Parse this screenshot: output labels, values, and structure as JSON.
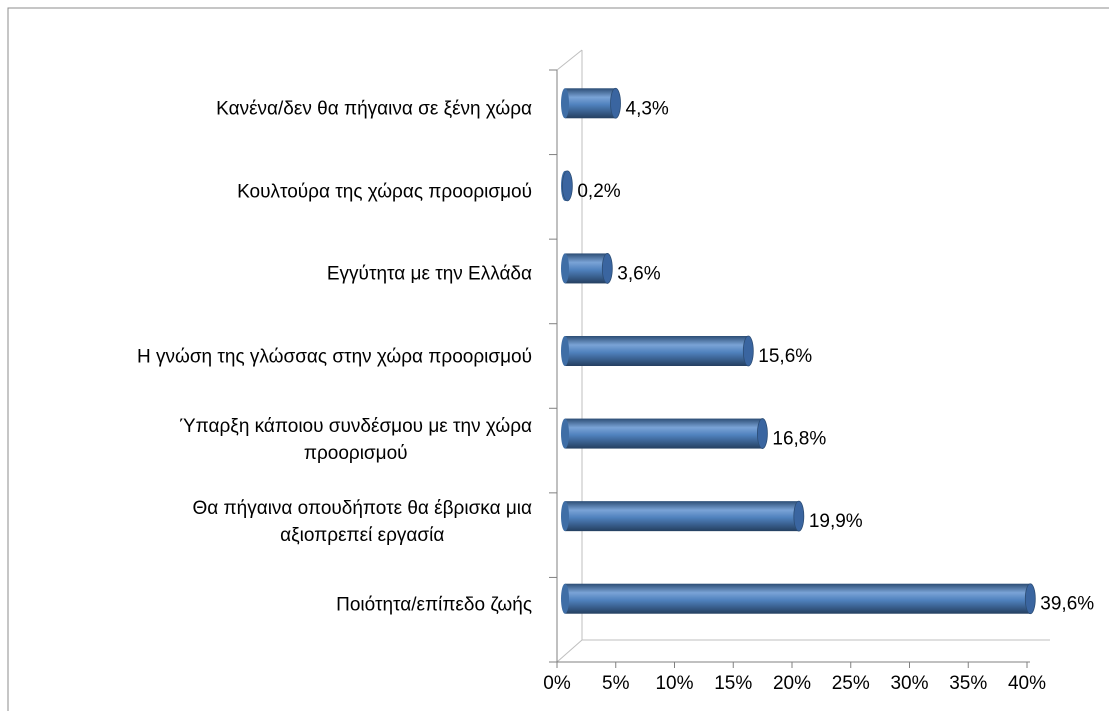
{
  "chart_data": {
    "type": "bar",
    "orientation": "horizontal",
    "categories": [
      "Κανένα/δεν θα πήγαινα σε ξένη χώρα",
      "Κουλτούρα της χώρας προορισμού",
      "Εγγύτητα με την Ελλάδα",
      "Η γνώση της γλώσσας στην χώρα προορισμού",
      "Ύπαρξη κάποιου συνδέσμου με την χώρα\nπροορισμού",
      "Θα πήγαινα οπουδήποτε θα έβρισκα μια\nαξιοπρεπεί εργασία",
      "Ποιότητα/επίπεδο ζωής"
    ],
    "values": [
      4.3,
      0.2,
      3.6,
      15.6,
      16.8,
      19.9,
      39.6
    ],
    "value_labels": [
      "4,3%",
      "0,2%",
      "3,6%",
      "15,6%",
      "16,8%",
      "19,9%",
      "39,6%"
    ],
    "color": "#4f81bd",
    "xlim": [
      0,
      40
    ],
    "xticks": [
      {
        "value": 0,
        "label": "0%"
      },
      {
        "value": 5,
        "label": "5%"
      },
      {
        "value": 10,
        "label": "10%"
      },
      {
        "value": 15,
        "label": "15%"
      },
      {
        "value": 20,
        "label": "20%"
      },
      {
        "value": 25,
        "label": "25%"
      },
      {
        "value": 30,
        "label": "30%"
      },
      {
        "value": 35,
        "label": "35%"
      },
      {
        "value": 40,
        "label": "40%"
      }
    ]
  }
}
